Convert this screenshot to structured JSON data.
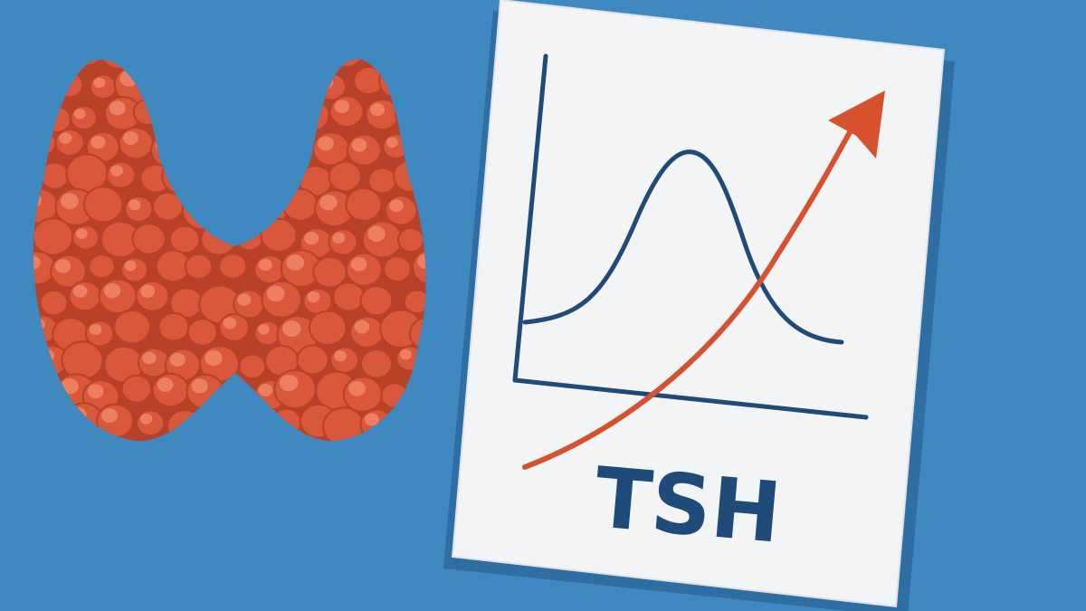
{
  "colors": {
    "background": "#3f88c0",
    "thyroid": "#d9573b",
    "thyroid_dark": "#b8412a",
    "nodule_highlight": "#f08a6c",
    "paper": "#f3f4f6",
    "paper_shadow": "#2f6ea3",
    "chart_line": "#1f4b7a",
    "arrow": "#d8512f"
  },
  "icons": {
    "organ": "thyroid-gland-illustration",
    "chart": "bell-curve-with-rising-arrow"
  },
  "card": {
    "label": "TSH"
  }
}
